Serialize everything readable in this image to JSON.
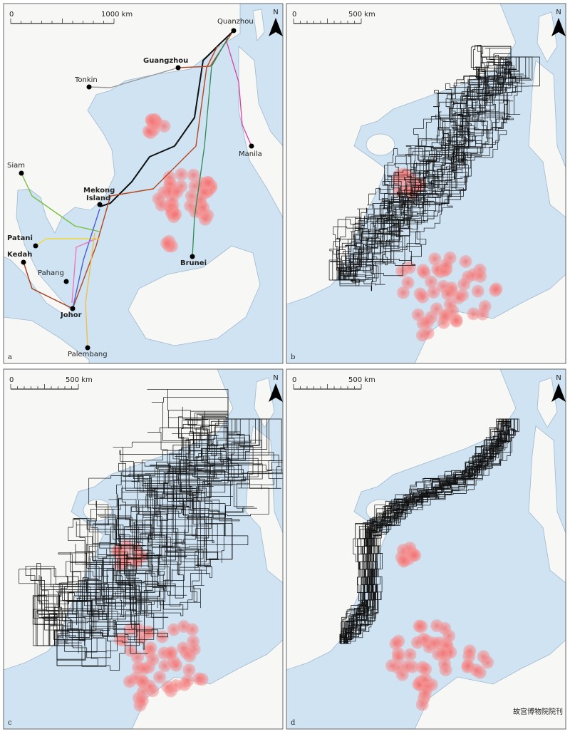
{
  "panels": [
    {
      "label": "a",
      "scale_start": "0",
      "scale_end": "1000 km",
      "north": "N",
      "places": [
        "Quanzhou",
        "Guangzhou",
        "Tonkin",
        "Manila",
        "Siam",
        "Mekong",
        "Island",
        "Patani",
        "Kedah",
        "Pahang",
        "Johor",
        "Brunei",
        "Palembang"
      ]
    },
    {
      "label": "b",
      "scale_start": "0",
      "scale_end": "500 km",
      "north": "N"
    },
    {
      "label": "c",
      "scale_start": "0",
      "scale_end": "500 km",
      "north": "N"
    },
    {
      "label": "d",
      "scale_start": "0",
      "scale_end": "500 km",
      "north": "N"
    }
  ],
  "watermark": "故宫博物院院刊"
}
